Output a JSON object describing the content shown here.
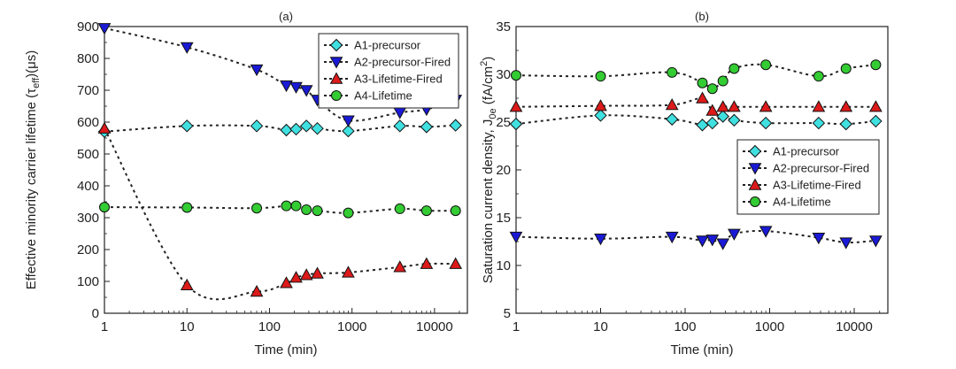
{
  "colors": {
    "A1": "#40e0e0",
    "A2": "#1a1ad6",
    "A3": "#dd1a1a",
    "A4": "#33cc33"
  },
  "chart_data": [
    {
      "type": "scatter",
      "title": "(a)",
      "xlabel": "Time (min)",
      "ylabel": "Effective minority carrier lifetime (τ",
      "ylabel_sub": "eff",
      "ylabel_tail": ")(μs)",
      "xscale": "log",
      "xlim": [
        1,
        25000
      ],
      "ylim": [
        0,
        900
      ],
      "xticks": [
        1,
        10,
        100,
        1000,
        10000
      ],
      "xtick_labels": [
        "1",
        "10",
        "100",
        "1000",
        "10000"
      ],
      "yticks": [
        0,
        100,
        200,
        300,
        400,
        500,
        600,
        700,
        800,
        900
      ],
      "ytick_labels": [
        "0",
        "100",
        "200",
        "300",
        "400",
        "500",
        "600",
        "700",
        "800",
        "900"
      ],
      "legend_position": "top-right",
      "series": [
        {
          "name": "A1-precursor",
          "marker": "diamond",
          "color_key": "A1",
          "x": [
            1,
            10,
            70,
            160,
            210,
            280,
            380,
            900,
            3800,
            8000,
            18000
          ],
          "y": [
            570,
            588,
            588,
            575,
            578,
            588,
            580,
            572,
            588,
            585,
            590
          ]
        },
        {
          "name": "A2-precursor-Fired",
          "marker": "triangle-down",
          "color_key": "A2",
          "x": [
            1,
            10,
            70,
            160,
            210,
            280,
            380,
            900,
            3800,
            8000,
            18000
          ],
          "y": [
            895,
            835,
            765,
            715,
            710,
            700,
            670,
            605,
            630,
            640,
            670
          ]
        },
        {
          "name": "A3-Lifetime-Fired",
          "marker": "triangle-up",
          "color_key": "A3",
          "x": [
            1,
            10,
            70,
            160,
            210,
            280,
            380,
            900,
            3800,
            8000,
            18000
          ],
          "y": [
            580,
            88,
            68,
            95,
            112,
            120,
            125,
            128,
            145,
            155,
            155
          ]
        },
        {
          "name": "A4-Lifetime",
          "marker": "circle",
          "color_key": "A4",
          "x": [
            1,
            10,
            70,
            160,
            210,
            280,
            380,
            900,
            3800,
            8000,
            18000
          ],
          "y": [
            333,
            332,
            330,
            337,
            337,
            325,
            322,
            315,
            328,
            322,
            322
          ]
        }
      ]
    },
    {
      "type": "scatter",
      "title": "(b)",
      "xlabel": "Time (min)",
      "ylabel": "Saturation current density, J",
      "ylabel_sub": "0e",
      "ylabel_tail": " (fA/cm",
      "ylabel_sup": "2",
      "ylabel_end": ")",
      "xscale": "log",
      "xlim": [
        1,
        25000
      ],
      "ylim": [
        5,
        35
      ],
      "xticks": [
        1,
        10,
        100,
        1000,
        10000
      ],
      "xtick_labels": [
        "1",
        "10",
        "100",
        "1000",
        "10000"
      ],
      "yticks": [
        5,
        10,
        15,
        20,
        25,
        30,
        35
      ],
      "ytick_labels": [
        "5",
        "10",
        "15",
        "20",
        "25",
        "30",
        "35"
      ],
      "legend_position": "center-right",
      "series": [
        {
          "name": "A1-precursor",
          "marker": "diamond",
          "color_key": "A1",
          "x": [
            1,
            10,
            70,
            160,
            210,
            280,
            380,
            900,
            3800,
            8000,
            18000
          ],
          "y": [
            24.8,
            25.7,
            25.3,
            24.7,
            24.9,
            25.6,
            25.2,
            24.9,
            24.9,
            24.8,
            25.1
          ]
        },
        {
          "name": "A2-precursor-Fired",
          "marker": "triangle-down",
          "color_key": "A2",
          "x": [
            1,
            10,
            70,
            160,
            210,
            280,
            380,
            900,
            3800,
            8000,
            18000
          ],
          "y": [
            13.0,
            12.8,
            13.0,
            12.6,
            12.7,
            12.3,
            13.3,
            13.6,
            12.9,
            12.4,
            12.6
          ]
        },
        {
          "name": "A3-Lifetime-Fired",
          "marker": "triangle-up",
          "color_key": "A3",
          "x": [
            1,
            10,
            70,
            160,
            210,
            280,
            380,
            900,
            3800,
            8000,
            18000
          ],
          "y": [
            26.6,
            26.7,
            26.8,
            27.5,
            26.2,
            26.6,
            26.6,
            26.6,
            26.6,
            26.6,
            26.6
          ]
        },
        {
          "name": "A4-Lifetime",
          "marker": "circle",
          "color_key": "A4",
          "x": [
            1,
            10,
            70,
            160,
            210,
            280,
            380,
            900,
            3800,
            8000,
            18000
          ],
          "y": [
            29.9,
            29.8,
            30.2,
            29.1,
            28.5,
            29.3,
            30.6,
            31.0,
            29.8,
            30.6,
            31.0
          ]
        }
      ]
    }
  ]
}
